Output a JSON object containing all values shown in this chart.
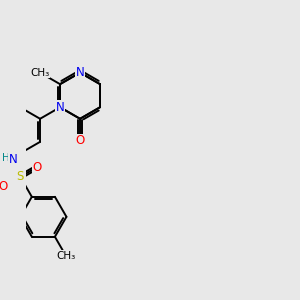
{
  "bg_color": "#e8e8e8",
  "atom_colors": {
    "C": "#000000",
    "N": "#0000ee",
    "O": "#ff0000",
    "S": "#bbbb00",
    "H": "#008888"
  },
  "bond_lw": 1.4,
  "dbo": 0.08,
  "figsize": [
    3.0,
    3.0
  ],
  "dpi": 100
}
